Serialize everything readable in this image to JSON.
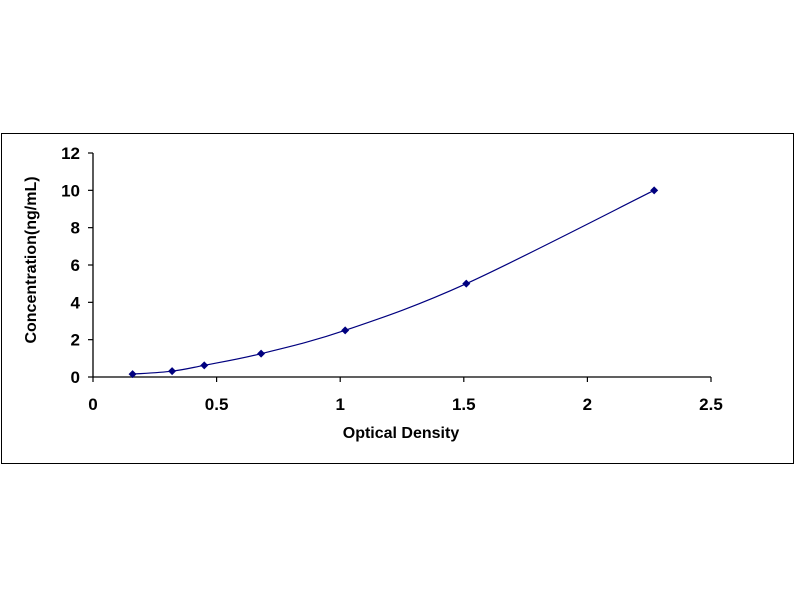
{
  "chart_data": {
    "type": "scatter",
    "title": "",
    "xlabel": "Optical Density",
    "ylabel": "Concentration(ng/mL)",
    "xlim": [
      0,
      2.5
    ],
    "ylim": [
      0,
      12
    ],
    "xticks": [
      "0",
      "0.5",
      "1",
      "1.5",
      "2",
      "2.5"
    ],
    "yticks": [
      "0",
      "2",
      "4",
      "6",
      "8",
      "10",
      "12"
    ],
    "grid": false,
    "legend": "none",
    "series": [
      {
        "x": [
          0.16,
          0.32,
          0.45,
          0.68,
          1.02,
          1.51,
          2.27
        ],
        "y": [
          0.156,
          0.312,
          0.625,
          1.25,
          2.5,
          5,
          10
        ],
        "color": "#00007f",
        "line": "smooth"
      }
    ]
  }
}
